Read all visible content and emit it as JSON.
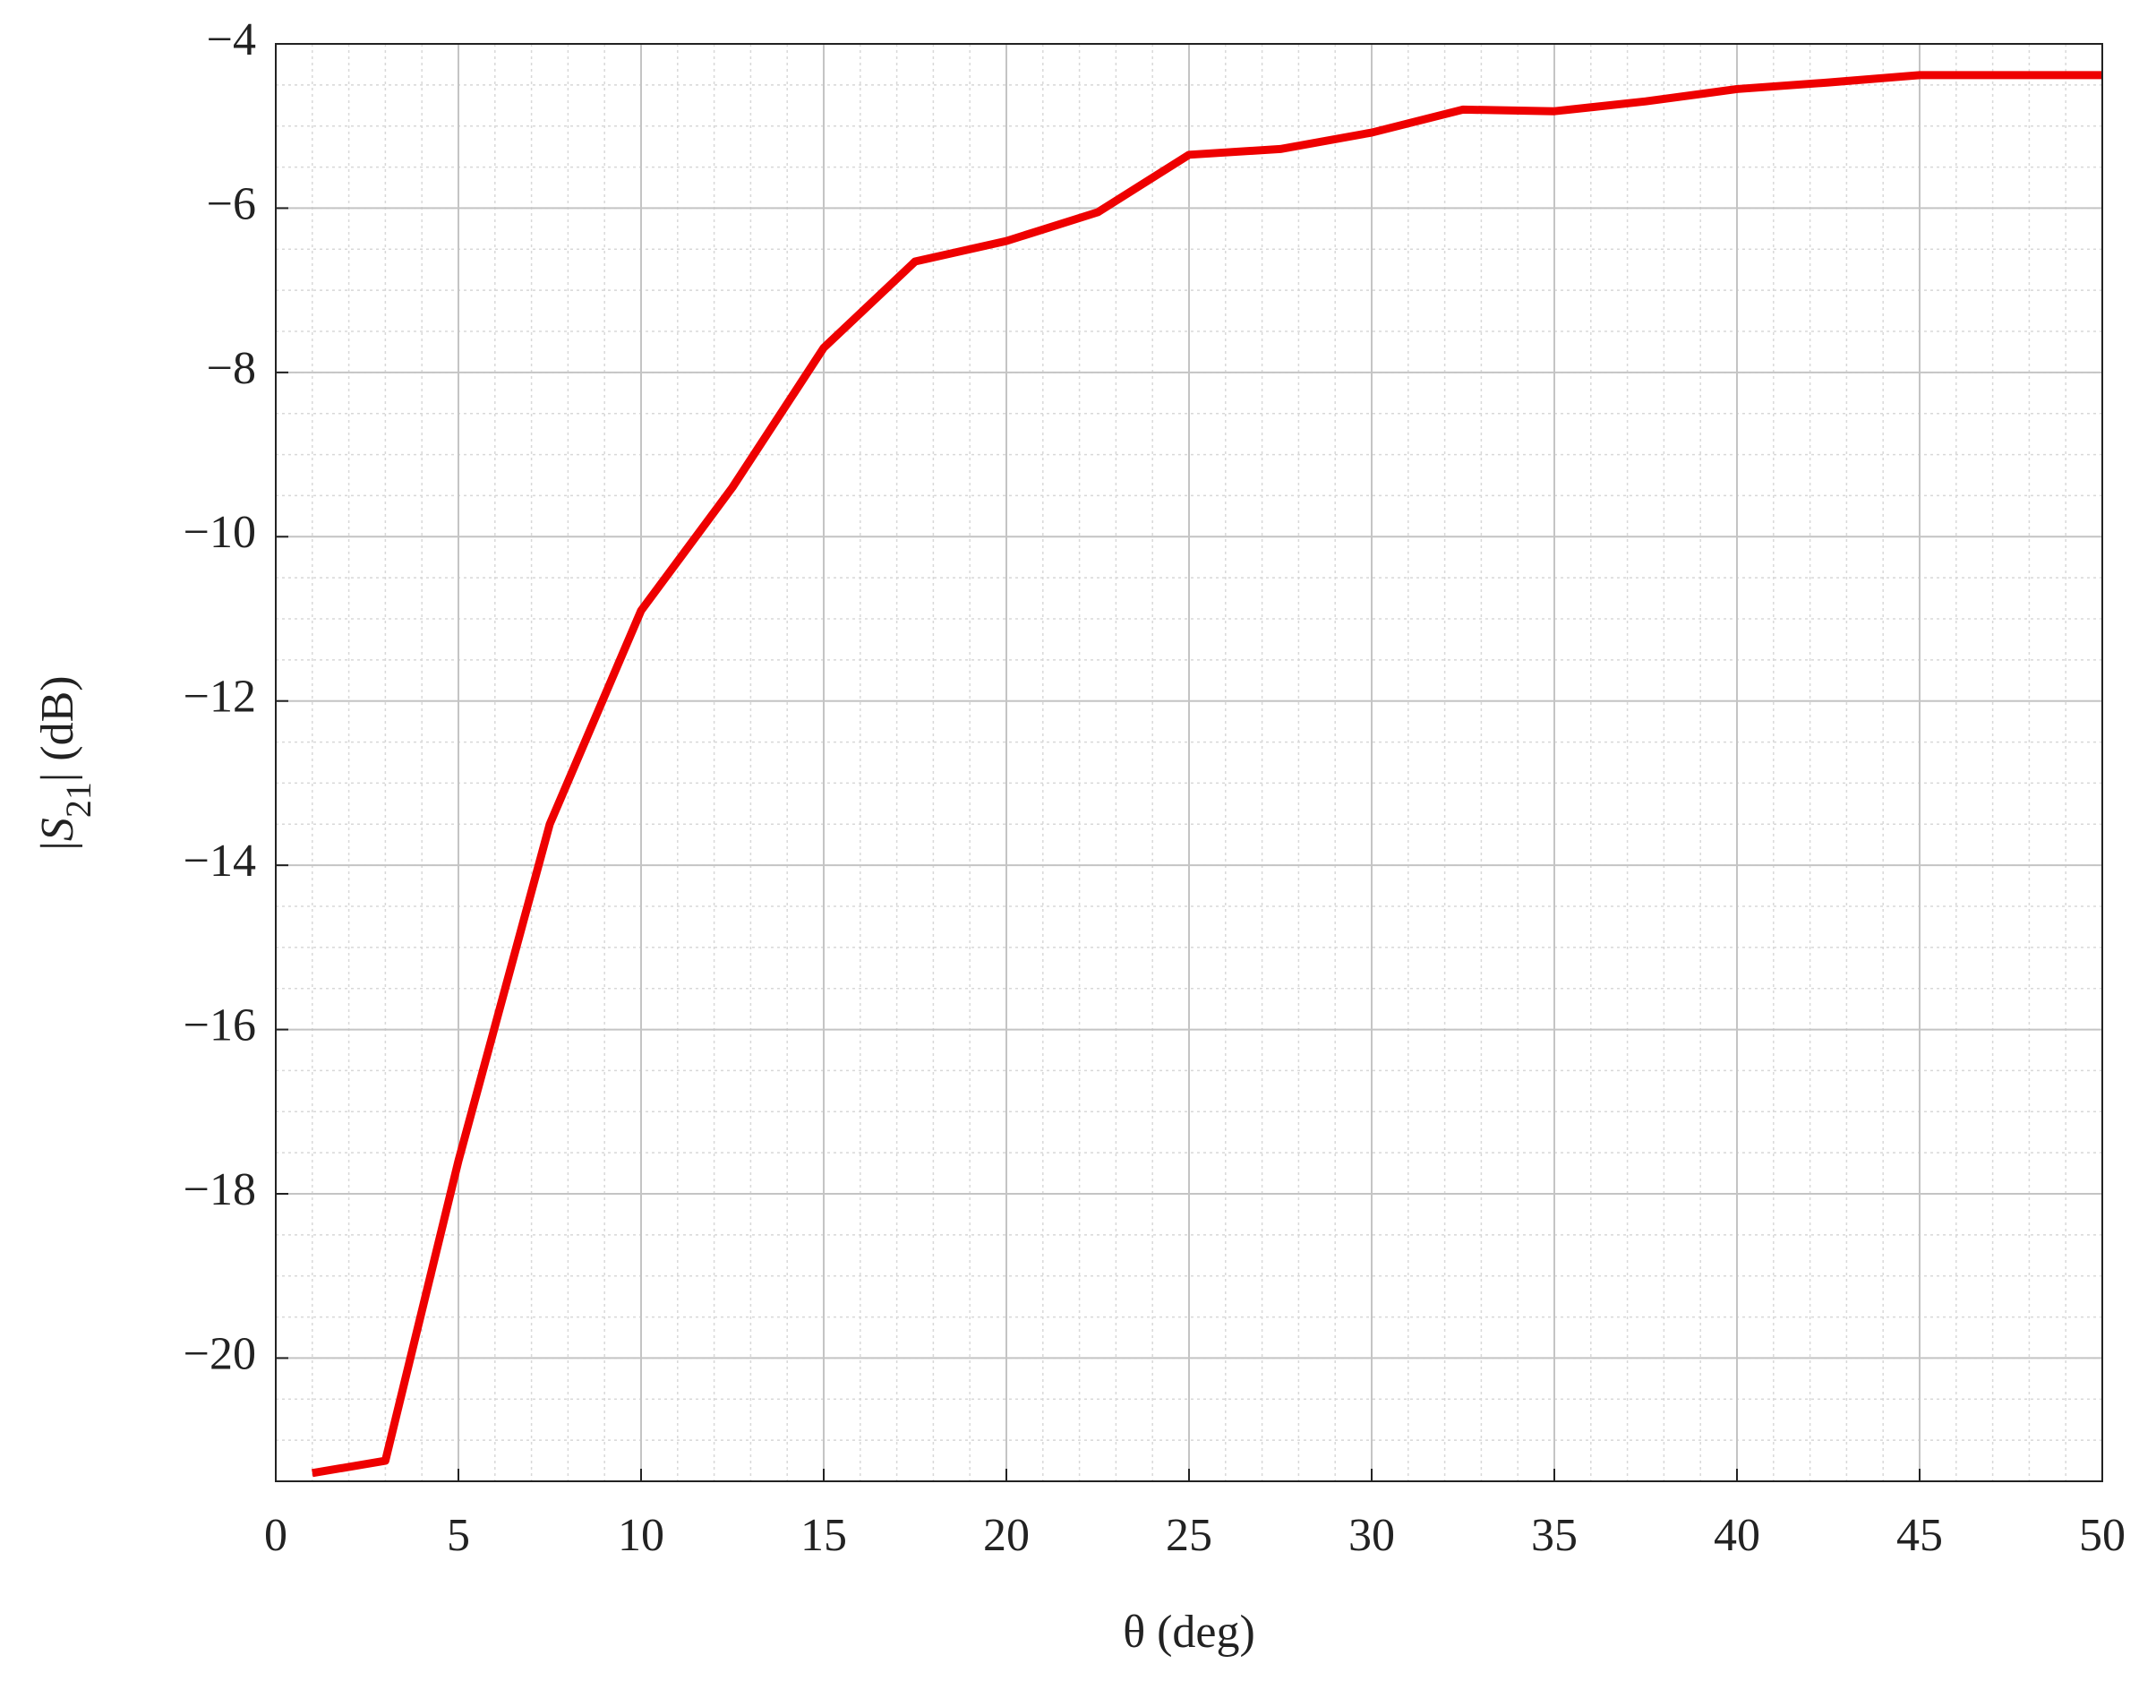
{
  "chart_data": {
    "type": "line",
    "xlabel": "θ (deg)",
    "ylabel": [
      "|",
      "S",
      "21",
      "| (dB)"
    ],
    "x": [
      1,
      3,
      5,
      7.5,
      10,
      12.5,
      15,
      17.5,
      20,
      22.5,
      25,
      27.5,
      30,
      32.5,
      35,
      37.5,
      40,
      42.5,
      45,
      47.5,
      50
    ],
    "series": [
      {
        "color": "#ee0000",
        "values": [
          -21.4,
          -21.25,
          -17.6,
          -13.5,
          -10.9,
          -9.4,
          -7.7,
          -6.65,
          -6.4,
          -6.05,
          -5.35,
          -5.28,
          -5.08,
          -4.8,
          -4.82,
          -4.7,
          -4.55,
          -4.47,
          -4.38,
          -4.38,
          -4.38
        ]
      }
    ],
    "xlim": [
      0,
      50
    ],
    "xticks": [
      0,
      5,
      10,
      15,
      20,
      25,
      30,
      35,
      40,
      45,
      50
    ],
    "ylim": [
      -21.5,
      -4
    ],
    "yticks": [
      {
        "value": -20,
        "label": "−20"
      },
      {
        "value": -18,
        "label": "−18"
      },
      {
        "value": -16,
        "label": "−16"
      },
      {
        "value": -14,
        "label": "−14"
      },
      {
        "value": -12,
        "label": "−12"
      },
      {
        "value": -10,
        "label": "−10"
      },
      {
        "value": -8,
        "label": "−8"
      },
      {
        "value": -6,
        "label": "−6"
      },
      {
        "value": -4,
        "label": "−4"
      }
    ],
    "grid": true,
    "minor_grid": {
      "x": 5,
      "y": 4
    }
  }
}
